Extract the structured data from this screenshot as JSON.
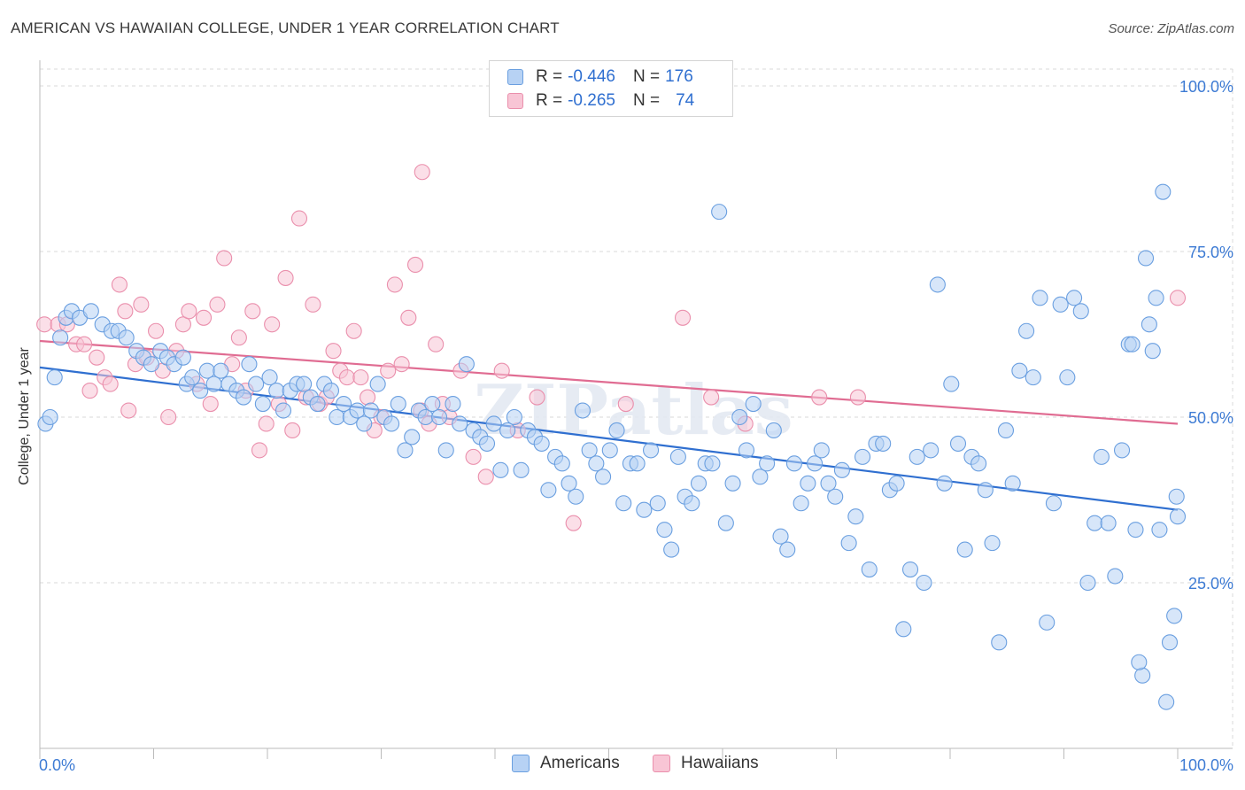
{
  "title": "AMERICAN VS HAWAIIAN COLLEGE, UNDER 1 YEAR CORRELATION CHART",
  "source": "Source: ZipAtlas.com",
  "watermark": "ZIPatlas",
  "legend": {
    "rows": [
      {
        "r_label": "R =",
        "r_value": "-0.446",
        "n_label": "N =",
        "n_value": "176",
        "fill": "#b7d2f4",
        "stroke": "#6a9fe0"
      },
      {
        "r_label": "R =",
        "r_value": "-0.265",
        "n_label": "N =",
        "n_value": "74",
        "fill": "#f8c5d5",
        "stroke": "#ea8fac"
      }
    ]
  },
  "bottom_legend": [
    {
      "label": "Americans",
      "fill": "#b7d2f4",
      "stroke": "#6a9fe0"
    },
    {
      "label": "Hawaiians",
      "fill": "#f8c5d5",
      "stroke": "#ea8fac"
    }
  ],
  "chart_data": {
    "type": "scatter",
    "title": "AMERICAN VS HAWAIIAN COLLEGE, UNDER 1 YEAR CORRELATION CHART",
    "xlabel": "",
    "ylabel": "College, Under 1 year",
    "xlim": [
      0,
      100
    ],
    "ylim": [
      0,
      102
    ],
    "x_tick_labels": [
      "0.0%",
      "100.0%"
    ],
    "y_tick_labels": [
      {
        "value": 100,
        "label": "100.0%"
      },
      {
        "value": 75,
        "label": "75.0%"
      },
      {
        "value": 50,
        "label": "50.0%"
      },
      {
        "value": 25,
        "label": "25.0%"
      }
    ],
    "grid": true,
    "legend_position": "top-center",
    "series": [
      {
        "name": "Americans",
        "color": "#6a9fe0",
        "fill": "#b7d2f4",
        "trend": {
          "x": [
            0,
            100
          ],
          "y": [
            57.5,
            36.0
          ],
          "color": "#2f6fd0"
        },
        "points": [
          [
            0.5,
            49
          ],
          [
            0.9,
            50
          ],
          [
            1.3,
            56
          ],
          [
            1.8,
            62
          ],
          [
            2.3,
            65
          ],
          [
            2.8,
            66
          ],
          [
            3.5,
            65
          ],
          [
            4.5,
            66
          ],
          [
            5.5,
            64
          ],
          [
            6.3,
            63
          ],
          [
            6.9,
            63
          ],
          [
            7.6,
            62
          ],
          [
            8.5,
            60
          ],
          [
            9.1,
            59
          ],
          [
            9.8,
            58
          ],
          [
            10.6,
            60
          ],
          [
            11.2,
            59
          ],
          [
            11.8,
            58
          ],
          [
            12.6,
            59
          ],
          [
            12.9,
            55
          ],
          [
            13.4,
            56
          ],
          [
            14.1,
            54
          ],
          [
            14.7,
            57
          ],
          [
            15.3,
            55
          ],
          [
            15.9,
            57
          ],
          [
            16.6,
            55
          ],
          [
            17.3,
            54
          ],
          [
            17.9,
            53
          ],
          [
            18.4,
            58
          ],
          [
            19.0,
            55
          ],
          [
            19.6,
            52
          ],
          [
            20.2,
            56
          ],
          [
            20.8,
            54
          ],
          [
            21.4,
            51
          ],
          [
            22.0,
            54
          ],
          [
            22.6,
            55
          ],
          [
            23.2,
            55
          ],
          [
            23.8,
            53
          ],
          [
            24.4,
            52
          ],
          [
            25.0,
            55
          ],
          [
            25.6,
            54
          ],
          [
            26.1,
            50
          ],
          [
            26.7,
            52
          ],
          [
            27.3,
            50
          ],
          [
            27.9,
            51
          ],
          [
            28.5,
            49
          ],
          [
            29.1,
            51
          ],
          [
            29.7,
            55
          ],
          [
            30.3,
            50
          ],
          [
            30.9,
            49
          ],
          [
            31.5,
            52
          ],
          [
            32.1,
            45
          ],
          [
            32.7,
            47
          ],
          [
            33.3,
            51
          ],
          [
            33.9,
            50
          ],
          [
            34.5,
            52
          ],
          [
            35.1,
            50
          ],
          [
            35.7,
            45
          ],
          [
            36.3,
            52
          ],
          [
            36.9,
            49
          ],
          [
            37.5,
            58
          ],
          [
            38.1,
            48
          ],
          [
            38.7,
            47
          ],
          [
            39.3,
            46
          ],
          [
            39.9,
            49
          ],
          [
            40.5,
            42
          ],
          [
            41.1,
            48
          ],
          [
            41.7,
            50
          ],
          [
            42.3,
            42
          ],
          [
            42.9,
            48
          ],
          [
            43.5,
            47
          ],
          [
            44.1,
            46
          ],
          [
            44.7,
            39
          ],
          [
            45.3,
            44
          ],
          [
            45.9,
            43
          ],
          [
            46.5,
            40
          ],
          [
            47.1,
            38
          ],
          [
            47.7,
            51
          ],
          [
            48.3,
            45
          ],
          [
            48.9,
            43
          ],
          [
            49.5,
            41
          ],
          [
            50.1,
            45
          ],
          [
            50.7,
            48
          ],
          [
            51.3,
            37
          ],
          [
            51.9,
            43
          ],
          [
            52.5,
            43
          ],
          [
            53.1,
            36
          ],
          [
            53.7,
            45
          ],
          [
            54.3,
            37
          ],
          [
            54.9,
            33
          ],
          [
            55.5,
            30
          ],
          [
            56.1,
            44
          ],
          [
            56.7,
            38
          ],
          [
            57.3,
            37
          ],
          [
            57.9,
            40
          ],
          [
            58.5,
            43
          ],
          [
            59.1,
            43
          ],
          [
            59.7,
            81
          ],
          [
            60.3,
            34
          ],
          [
            60.9,
            40
          ],
          [
            61.5,
            50
          ],
          [
            62.1,
            45
          ],
          [
            62.7,
            52
          ],
          [
            63.3,
            41
          ],
          [
            63.9,
            43
          ],
          [
            64.5,
            48
          ],
          [
            65.1,
            32
          ],
          [
            65.7,
            30
          ],
          [
            66.3,
            43
          ],
          [
            66.9,
            37
          ],
          [
            67.5,
            40
          ],
          [
            68.1,
            43
          ],
          [
            68.7,
            45
          ],
          [
            69.3,
            40
          ],
          [
            69.9,
            38
          ],
          [
            70.5,
            42
          ],
          [
            71.1,
            31
          ],
          [
            71.7,
            35
          ],
          [
            72.3,
            44
          ],
          [
            72.9,
            27
          ],
          [
            73.5,
            46
          ],
          [
            74.1,
            46
          ],
          [
            74.7,
            39
          ],
          [
            75.3,
            40
          ],
          [
            75.9,
            18
          ],
          [
            76.5,
            27
          ],
          [
            77.1,
            44
          ],
          [
            77.7,
            25
          ],
          [
            78.3,
            45
          ],
          [
            78.9,
            70
          ],
          [
            79.5,
            40
          ],
          [
            80.1,
            55
          ],
          [
            80.7,
            46
          ],
          [
            81.3,
            30
          ],
          [
            81.9,
            44
          ],
          [
            82.5,
            43
          ],
          [
            83.1,
            39
          ],
          [
            83.7,
            31
          ],
          [
            84.3,
            16
          ],
          [
            84.9,
            48
          ],
          [
            85.5,
            40
          ],
          [
            86.1,
            57
          ],
          [
            86.7,
            63
          ],
          [
            87.3,
            56
          ],
          [
            87.9,
            68
          ],
          [
            88.5,
            19
          ],
          [
            89.1,
            37
          ],
          [
            89.7,
            67
          ],
          [
            90.3,
            56
          ],
          [
            90.9,
            68
          ],
          [
            91.5,
            66
          ],
          [
            92.1,
            25
          ],
          [
            92.7,
            34
          ],
          [
            93.3,
            44
          ],
          [
            93.9,
            34
          ],
          [
            94.5,
            26
          ],
          [
            95.1,
            45
          ],
          [
            95.7,
            61
          ],
          [
            96.3,
            33
          ],
          [
            96.9,
            11
          ],
          [
            97.5,
            64
          ],
          [
            98.1,
            68
          ],
          [
            98.7,
            84
          ],
          [
            99.3,
            16
          ],
          [
            99.9,
            38
          ],
          [
            100.0,
            35
          ],
          [
            99.7,
            20
          ],
          [
            99.0,
            7
          ],
          [
            98.4,
            33
          ],
          [
            97.8,
            60
          ],
          [
            97.2,
            74
          ],
          [
            96.6,
            13
          ],
          [
            96.0,
            61
          ]
        ]
      },
      {
        "name": "Hawaiians",
        "color": "#ea8fac",
        "fill": "#f8c5d5",
        "trend": {
          "x": [
            0,
            100
          ],
          "y": [
            61.5,
            49.0
          ],
          "color": "#e06c92"
        },
        "points": [
          [
            0.4,
            64
          ],
          [
            1.6,
            64
          ],
          [
            2.4,
            64
          ],
          [
            3.2,
            61
          ],
          [
            3.9,
            61
          ],
          [
            4.4,
            54
          ],
          [
            5.0,
            59
          ],
          [
            5.7,
            56
          ],
          [
            6.2,
            55
          ],
          [
            7.0,
            70
          ],
          [
            7.5,
            66
          ],
          [
            7.8,
            51
          ],
          [
            8.4,
            58
          ],
          [
            8.9,
            67
          ],
          [
            9.4,
            59
          ],
          [
            10.2,
            63
          ],
          [
            10.8,
            57
          ],
          [
            11.3,
            50
          ],
          [
            12.0,
            60
          ],
          [
            12.6,
            64
          ],
          [
            13.1,
            66
          ],
          [
            13.8,
            55
          ],
          [
            14.4,
            65
          ],
          [
            15.0,
            52
          ],
          [
            15.6,
            67
          ],
          [
            16.2,
            74
          ],
          [
            16.9,
            58
          ],
          [
            17.5,
            62
          ],
          [
            18.1,
            54
          ],
          [
            18.7,
            66
          ],
          [
            19.3,
            45
          ],
          [
            19.9,
            49
          ],
          [
            20.4,
            64
          ],
          [
            21.0,
            52
          ],
          [
            21.6,
            71
          ],
          [
            22.2,
            48
          ],
          [
            22.8,
            80
          ],
          [
            23.4,
            53
          ],
          [
            24.0,
            67
          ],
          [
            24.6,
            52
          ],
          [
            25.2,
            53
          ],
          [
            25.8,
            60
          ],
          [
            26.4,
            57
          ],
          [
            27.0,
            56
          ],
          [
            27.6,
            63
          ],
          [
            28.2,
            56
          ],
          [
            28.8,
            53
          ],
          [
            29.4,
            48
          ],
          [
            30.0,
            50
          ],
          [
            30.6,
            57
          ],
          [
            31.2,
            70
          ],
          [
            31.8,
            58
          ],
          [
            32.4,
            65
          ],
          [
            33.0,
            73
          ],
          [
            33.6,
            87
          ],
          [
            34.2,
            49
          ],
          [
            34.8,
            61
          ],
          [
            35.4,
            52
          ],
          [
            36.0,
            50
          ],
          [
            37.0,
            57
          ],
          [
            38.1,
            44
          ],
          [
            39.2,
            41
          ],
          [
            40.6,
            57
          ],
          [
            43.7,
            53
          ],
          [
            46.9,
            34
          ],
          [
            51.5,
            52
          ],
          [
            56.5,
            65
          ],
          [
            59.0,
            53
          ],
          [
            62.0,
            49
          ],
          [
            68.5,
            53
          ],
          [
            71.9,
            53
          ],
          [
            100.0,
            68
          ],
          [
            42.0,
            48
          ],
          [
            33.5,
            51
          ]
        ]
      }
    ]
  }
}
